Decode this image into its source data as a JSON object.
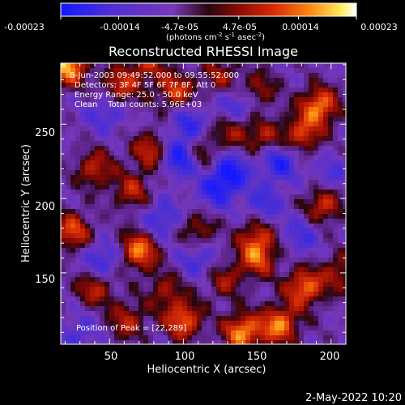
{
  "chart_data": {
    "type": "heatmap",
    "title": "Reconstructed RHESSI Image",
    "xlabel": "Heliocentric X (arcsec)",
    "ylabel": "Heliocentric Y (arcsec)",
    "x_range": [
      17,
      210
    ],
    "y_range": [
      102,
      291
    ],
    "x_ticks": [
      50,
      100,
      150,
      200
    ],
    "y_ticks": [
      150,
      200,
      250
    ],
    "colorbar": {
      "min": -0.00023,
      "max": 0.00023,
      "tick_labels": [
        "-0.00023",
        "-0.00014",
        "-4.7e-05",
        "4.7e-05",
        "0.00014",
        "0.00023"
      ],
      "units_parts": [
        "(photons cm",
        "-2",
        " s",
        "-1",
        " asec",
        "-2",
        ")"
      ]
    },
    "annotations": [
      "8-Jun-2003 09:49:52.000 to 09:55:52.000",
      "Detectors: 3F 4F 5F 6F 7F 8F, Att 0",
      "Energy Range: 25.0 - 50.0 keV",
      "Clean    Total counts: 5.96E+03"
    ],
    "peak_label": "Position of Peak = [22,289]",
    "peak": [
      22,
      289
    ],
    "hotspots": [
      [
        22,
        289,
        0.00023
      ],
      [
        57,
        275,
        0.00014
      ],
      [
        75,
        290,
        0.00012
      ],
      [
        95,
        272,
        0.00015
      ],
      [
        125,
        283,
        0.0001
      ],
      [
        150,
        272,
        0.00012
      ],
      [
        192,
        262,
        0.0002
      ],
      [
        180,
        243,
        0.00015
      ],
      [
        135,
        248,
        0.00012
      ],
      [
        155,
        240,
        0.00011
      ],
      [
        40,
        220,
        0.00013
      ],
      [
        78,
        232,
        0.00014
      ],
      [
        112,
        232,
        0.00012
      ],
      [
        65,
        205,
        0.00012
      ],
      [
        25,
        178,
        0.00016
      ],
      [
        70,
        165,
        0.0002
      ],
      [
        110,
        178,
        0.00011
      ],
      [
        150,
        175,
        0.00012
      ],
      [
        195,
        196,
        0.00015
      ],
      [
        150,
        160,
        0.00016
      ],
      [
        182,
        140,
        0.00019
      ],
      [
        165,
        115,
        0.0002
      ],
      [
        140,
        110,
        0.00021
      ],
      [
        100,
        118,
        0.00018
      ],
      [
        40,
        140,
        0.00013
      ],
      [
        62,
        118,
        0.00012
      ],
      [
        206,
        150,
        0.00011
      ],
      [
        88,
        138,
        0.0001
      ],
      [
        128,
        145,
        0.0001
      ]
    ],
    "coldspots": [
      [
        98,
        228,
        -0.00018
      ],
      [
        132,
        218,
        -0.00016
      ],
      [
        165,
        225,
        -0.00015
      ],
      [
        104,
        250,
        -0.00012
      ],
      [
        138,
        262,
        -0.00014
      ],
      [
        122,
        205,
        -0.00012
      ],
      [
        45,
        158,
        -0.00012
      ],
      [
        85,
        186,
        -0.00011
      ],
      [
        48,
        258,
        -0.0001
      ],
      [
        110,
        160,
        -0.0001
      ],
      [
        180,
        175,
        -9e-05
      ],
      [
        200,
        215,
        -8e-05
      ],
      [
        30,
        110,
        -8e-05
      ],
      [
        155,
        196,
        -0.0001
      ]
    ]
  },
  "timestamp": "2-May-2022 10:20"
}
